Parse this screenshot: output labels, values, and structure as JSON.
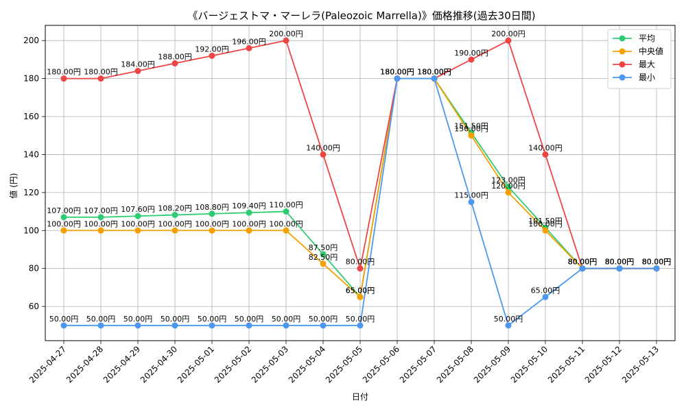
{
  "chart_data": {
    "type": "line",
    "title": "《バージェストマ・マーレラ(Paleozoic Marrella)》価格推移(過去30日間)",
    "xlabel": "日付",
    "ylabel": "値 (円)",
    "ylim": [
      42,
      208
    ],
    "yticks": [
      60,
      80,
      100,
      120,
      140,
      160,
      180,
      200
    ],
    "grid": true,
    "legend_position": "top-right",
    "categories": [
      "2025-04-27",
      "2025-04-28",
      "2025-04-29",
      "2025-04-30",
      "2025-05-01",
      "2025-05-02",
      "2025-05-03",
      "2025-05-04",
      "2025-05-05",
      "2025-05-06",
      "2025-05-07",
      "2025-05-08",
      "2025-05-09",
      "2025-05-10",
      "2025-05-11",
      "2025-05-12",
      "2025-05-13"
    ],
    "series": [
      {
        "name": "平均",
        "color": "#2ecc71",
        "values": [
          107.0,
          107.0,
          107.6,
          108.2,
          108.8,
          109.4,
          110.0,
          87.5,
          65.0,
          180.0,
          180.0,
          151.5,
          123.0,
          101.5,
          80.0,
          80.0,
          80.0
        ],
        "labels": [
          "107.00円",
          "107.00円",
          "107.60円",
          "108.20円",
          "108.80円",
          "109.40円",
          "110.00円",
          "87.50円",
          "65.00円",
          "180.00円",
          "180.00円",
          "151.50円",
          "123.00円",
          "101.50円",
          "80.00円",
          "80.00円",
          "80.00円"
        ]
      },
      {
        "name": "中央値",
        "color": "#f5a000",
        "values": [
          100.0,
          100.0,
          100.0,
          100.0,
          100.0,
          100.0,
          100.0,
          82.5,
          65.0,
          180.0,
          180.0,
          150.0,
          120.0,
          100.0,
          80.0,
          80.0,
          80.0
        ],
        "labels": [
          "100.00円",
          "100.00円",
          "100.00円",
          "100.00円",
          "100.00円",
          "100.00円",
          "100.00円",
          "82.50円",
          "65.00円",
          "180.00円",
          "180.00円",
          "150.00円",
          "120.00円",
          "100.00円",
          "80.00円",
          "80.00円",
          "80.00円"
        ]
      },
      {
        "name": "最大",
        "color": "#ef4444",
        "values": [
          180.0,
          180.0,
          184.0,
          188.0,
          192.0,
          196.0,
          200.0,
          140.0,
          80.0,
          180.0,
          180.0,
          190.0,
          200.0,
          140.0,
          80.0,
          80.0,
          80.0
        ],
        "labels": [
          "180.00円",
          "180.00円",
          "184.00円",
          "188.00円",
          "192.00円",
          "196.00円",
          "200.00円",
          "140.00円",
          "80.00円",
          "180.00円",
          "180.00円",
          "190.00円",
          "200.00円",
          "140.00円",
          "80.00円",
          "80.00円",
          "80.00円"
        ]
      },
      {
        "name": "最小",
        "color": "#4a98f0",
        "values": [
          50.0,
          50.0,
          50.0,
          50.0,
          50.0,
          50.0,
          50.0,
          50.0,
          50.0,
          180.0,
          180.0,
          115.0,
          50.0,
          65.0,
          80.0,
          80.0,
          80.0
        ],
        "labels": [
          "50.00円",
          "50.00円",
          "50.00円",
          "50.00円",
          "50.00円",
          "50.00円",
          "50.00円",
          "50.00円",
          "50.00円",
          "180.00円",
          "180.00円",
          "115.00円",
          "50.00円",
          "65.00円",
          "80.00円",
          "80.00円",
          "80.00円"
        ]
      }
    ]
  }
}
